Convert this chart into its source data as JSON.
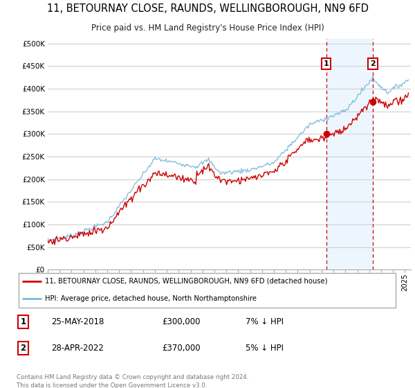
{
  "title": "11, BETOURNAY CLOSE, RAUNDS, WELLINGBOROUGH, NN9 6FD",
  "subtitle": "Price paid vs. HM Land Registry's House Price Index (HPI)",
  "ylabel_ticks": [
    "£0",
    "£50K",
    "£100K",
    "£150K",
    "£200K",
    "£250K",
    "£300K",
    "£350K",
    "£400K",
    "£450K",
    "£500K"
  ],
  "ytick_values": [
    0,
    50000,
    100000,
    150000,
    200000,
    250000,
    300000,
    350000,
    400000,
    450000,
    500000
  ],
  "sale1": {
    "date_label": "25-MAY-2018",
    "price": 300000,
    "pct": "7%",
    "marker_x": 2018.4,
    "marker_y": 300000,
    "label": "1"
  },
  "sale2": {
    "date_label": "28-APR-2022",
    "price": 370000,
    "pct": "5%",
    "marker_x": 2022.3,
    "marker_y": 370000,
    "label": "2"
  },
  "hpi_line_color": "#7ab8d9",
  "price_line_color": "#cc0000",
  "vline_color": "#cc0000",
  "shade_color": "#ddeeff",
  "background_color": "#ffffff",
  "grid_color": "#cccccc",
  "legend_entry1": "11, BETOURNAY CLOSE, RAUNDS, WELLINGBOROUGH, NN9 6FD (detached house)",
  "legend_entry2": "HPI: Average price, detached house, North Northamptonshire",
  "footer": "Contains HM Land Registry data © Crown copyright and database right 2024.\nThis data is licensed under the Open Government Licence v3.0.",
  "xmin": 1995,
  "xmax": 2025.5,
  "ylim_max": 510000,
  "xticks": [
    1995,
    1996,
    1997,
    1998,
    1999,
    2000,
    2001,
    2002,
    2003,
    2004,
    2005,
    2006,
    2007,
    2008,
    2009,
    2010,
    2011,
    2012,
    2013,
    2014,
    2015,
    2016,
    2017,
    2018,
    2019,
    2020,
    2021,
    2022,
    2023,
    2024,
    2025
  ]
}
